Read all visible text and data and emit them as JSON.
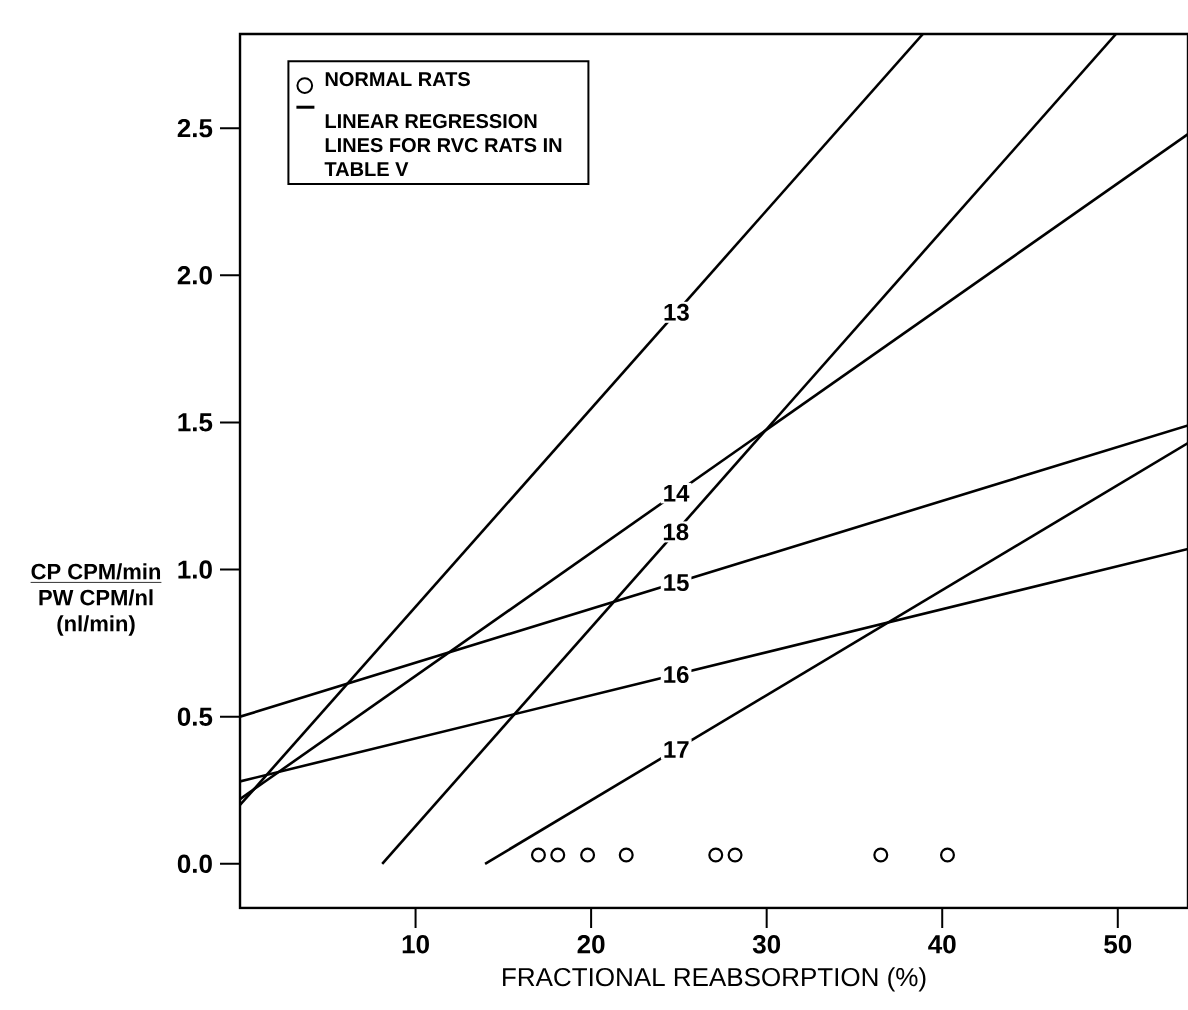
{
  "chart_data": {
    "type": "line",
    "xlabel": "FRACTIONAL REABSORPTION (%)",
    "ylabel": "\\begin{array}{c}\\underline{\\mbox{CP CPM/min}}\\\\ \\mbox{PW CPM/nl}\\\\ \\mbox{(nl/min)}\\end{array}",
    "xlim": [
      0,
      54
    ],
    "ylim": [
      -0.15,
      2.82
    ],
    "xticks": [
      10,
      20,
      30,
      40,
      50
    ],
    "yticks": [
      {
        "value": 0,
        "label": "0.0"
      },
      0.5,
      {
        "value": 1,
        "label": "1.0"
      },
      1.5,
      {
        "value": 2,
        "label": "2.0"
      },
      2.5
    ],
    "legend": "top left",
    "annotations": [
      "LINEAR REGRESSION LINES FOR RVC RATS IN TABLE V"
    ],
    "series": [
      {
        "name": "NORMAL RATS",
        "type": "scatter",
        "marker": "circle",
        "color": "#000000",
        "x": [
          17.0,
          18.1,
          19.8,
          22.0,
          27.1,
          28.2,
          36.5,
          40.3
        ],
        "values": [
          0.03,
          0.03,
          0.03,
          0.03,
          0.03,
          0.03,
          0.03,
          0.03
        ]
      },
      {
        "name": "13",
        "color": "#000000",
        "x": [
          0,
          38.9
        ],
        "values": [
          0.2,
          2.82
        ]
      },
      {
        "name": "14",
        "color": "#000000",
        "x": [
          0,
          54
        ],
        "values": [
          0.22,
          2.48
        ]
      },
      {
        "name": "18",
        "color": "#000000",
        "x": [
          8.1,
          49.9
        ],
        "values": [
          0,
          2.82
        ]
      },
      {
        "name": "15",
        "color": "#000000",
        "x": [
          0,
          54
        ],
        "values": [
          0.5,
          1.49
        ]
      },
      {
        "name": "16",
        "color": "#000000",
        "x": [
          0,
          54
        ],
        "values": [
          0.28,
          1.07
        ]
      },
      {
        "name": "17",
        "color": "#000000",
        "x": [
          13.96,
          54
        ],
        "values": [
          0,
          1.43
        ]
      }
    ]
  }
}
